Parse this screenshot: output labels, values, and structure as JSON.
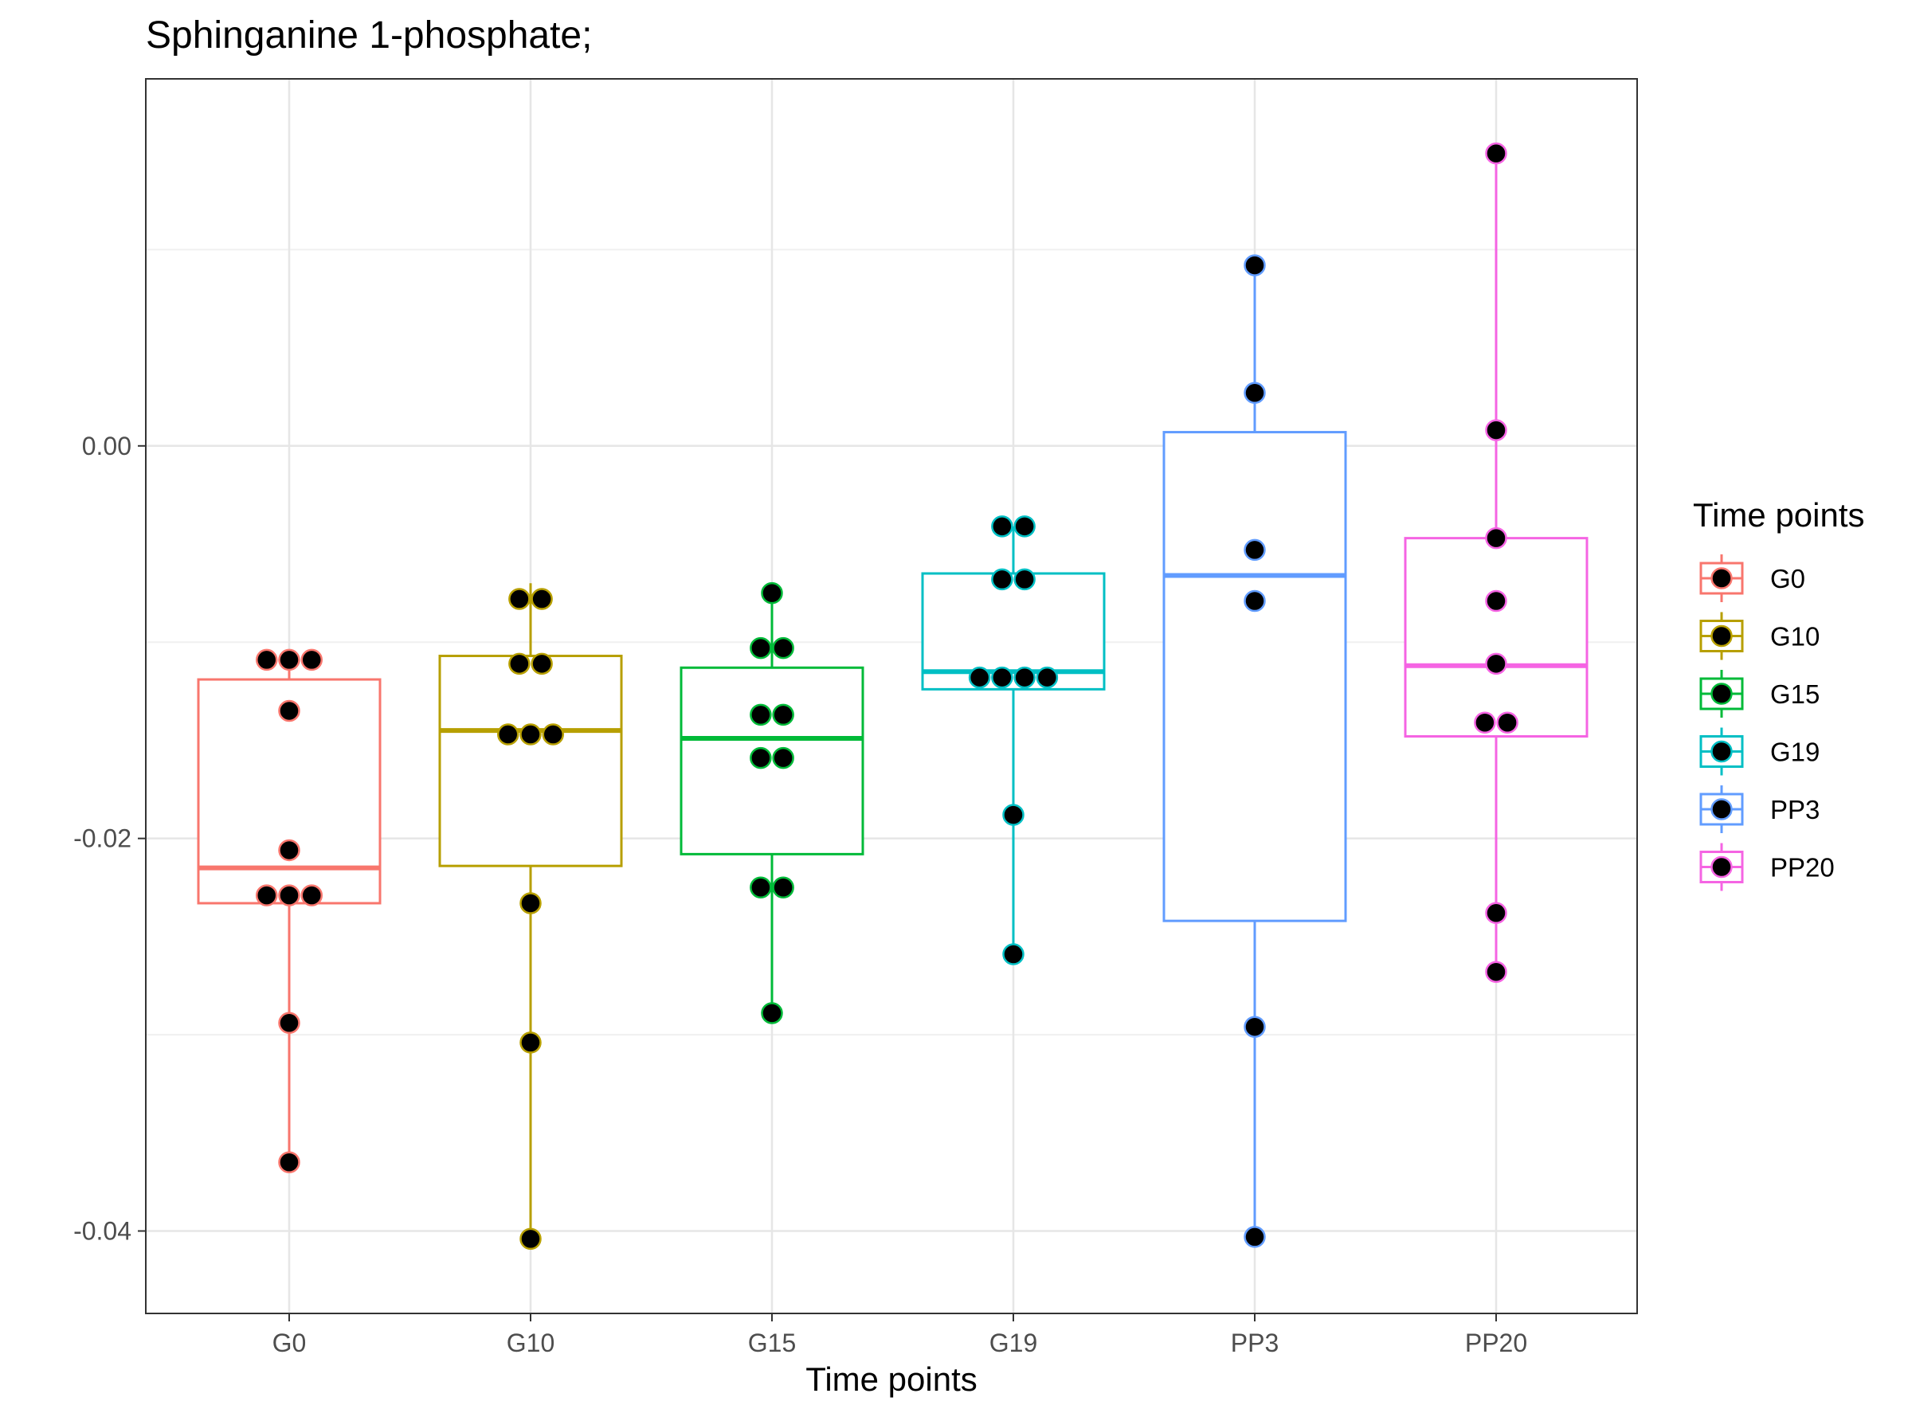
{
  "chart_data": {
    "type": "box",
    "title": "Sphinganine 1-phosphate;",
    "xlabel": "Time points",
    "ylabel": "",
    "categories": [
      "G0",
      "G10",
      "G15",
      "G19",
      "PP3",
      "PP20"
    ],
    "ylim": [
      -0.0442,
      0.0187
    ],
    "yticks": [
      -0.04,
      -0.02,
      0.0
    ],
    "ytick_labels": [
      "-0.04",
      "-0.02",
      "0.00"
    ],
    "grid": true,
    "legend": {
      "title": "Time points",
      "position": "right",
      "entries": [
        "G0",
        "G10",
        "G15",
        "G19",
        "PP3",
        "PP20"
      ]
    },
    "colors": {
      "G0": "#F8766D",
      "G10": "#B79F00",
      "G15": "#00BA38",
      "G19": "#00BFC4",
      "PP3": "#619CFF",
      "PP20": "#F564E3"
    },
    "boxes": [
      {
        "name": "G0",
        "min": -0.0365,
        "q1": -0.0233,
        "median": -0.0215,
        "q3": -0.0119,
        "max": -0.0109
      },
      {
        "name": "G10",
        "min": -0.0404,
        "q1": -0.0214,
        "median": -0.0145,
        "q3": -0.0107,
        "max": -0.007
      },
      {
        "name": "G15",
        "min": -0.0289,
        "q1": -0.0208,
        "median": -0.0149,
        "q3": -0.0113,
        "max": -0.0075
      },
      {
        "name": "G19",
        "min": -0.0259,
        "q1": -0.0124,
        "median": -0.0115,
        "q3": -0.0065,
        "max": -0.0041
      },
      {
        "name": "PP3",
        "min": -0.0403,
        "q1": -0.0242,
        "median": -0.0066,
        "q3": 0.0007,
        "max": 0.0092
      },
      {
        "name": "PP20",
        "min": -0.0268,
        "q1": -0.0148,
        "median": -0.0112,
        "q3": -0.0047,
        "max": 0.0149
      }
    ],
    "points": [
      {
        "group": "G0",
        "jitter": -0.18,
        "y": -0.0109
      },
      {
        "group": "G0",
        "jitter": 0.0,
        "y": -0.0109
      },
      {
        "group": "G0",
        "jitter": 0.18,
        "y": -0.0109
      },
      {
        "group": "G0",
        "jitter": 0.0,
        "y": -0.0135
      },
      {
        "group": "G0",
        "jitter": 0.0,
        "y": -0.0206
      },
      {
        "group": "G0",
        "jitter": -0.18,
        "y": -0.0229
      },
      {
        "group": "G0",
        "jitter": 0.0,
        "y": -0.0229
      },
      {
        "group": "G0",
        "jitter": 0.18,
        "y": -0.0229
      },
      {
        "group": "G0",
        "jitter": 0.0,
        "y": -0.0294
      },
      {
        "group": "G0",
        "jitter": 0.0,
        "y": -0.0365
      },
      {
        "group": "G10",
        "jitter": -0.09,
        "y": -0.0078
      },
      {
        "group": "G10",
        "jitter": 0.09,
        "y": -0.0078
      },
      {
        "group": "G10",
        "jitter": -0.09,
        "y": -0.0111
      },
      {
        "group": "G10",
        "jitter": 0.09,
        "y": -0.0111
      },
      {
        "group": "G10",
        "jitter": -0.18,
        "y": -0.0147
      },
      {
        "group": "G10",
        "jitter": 0.0,
        "y": -0.0147
      },
      {
        "group": "G10",
        "jitter": 0.18,
        "y": -0.0147
      },
      {
        "group": "G10",
        "jitter": 0.0,
        "y": -0.0233
      },
      {
        "group": "G10",
        "jitter": 0.0,
        "y": -0.0304
      },
      {
        "group": "G10",
        "jitter": 0.0,
        "y": -0.0404
      },
      {
        "group": "G15",
        "jitter": 0.0,
        "y": -0.0075
      },
      {
        "group": "G15",
        "jitter": -0.09,
        "y": -0.0103
      },
      {
        "group": "G15",
        "jitter": 0.09,
        "y": -0.0103
      },
      {
        "group": "G15",
        "jitter": -0.09,
        "y": -0.0137
      },
      {
        "group": "G15",
        "jitter": 0.09,
        "y": -0.0137
      },
      {
        "group": "G15",
        "jitter": -0.09,
        "y": -0.0159
      },
      {
        "group": "G15",
        "jitter": 0.09,
        "y": -0.0159
      },
      {
        "group": "G15",
        "jitter": -0.09,
        "y": -0.0225
      },
      {
        "group": "G15",
        "jitter": 0.09,
        "y": -0.0225
      },
      {
        "group": "G15",
        "jitter": 0.0,
        "y": -0.0289
      },
      {
        "group": "G19",
        "jitter": -0.09,
        "y": -0.0041
      },
      {
        "group": "G19",
        "jitter": 0.09,
        "y": -0.0041
      },
      {
        "group": "G19",
        "jitter": -0.09,
        "y": -0.0068
      },
      {
        "group": "G19",
        "jitter": 0.09,
        "y": -0.0068
      },
      {
        "group": "G19",
        "jitter": -0.27,
        "y": -0.0118
      },
      {
        "group": "G19",
        "jitter": -0.09,
        "y": -0.0118
      },
      {
        "group": "G19",
        "jitter": 0.09,
        "y": -0.0118
      },
      {
        "group": "G19",
        "jitter": 0.27,
        "y": -0.0118
      },
      {
        "group": "G19",
        "jitter": 0.0,
        "y": -0.0188
      },
      {
        "group": "G19",
        "jitter": 0.0,
        "y": -0.0259
      },
      {
        "group": "PP3",
        "jitter": 0.0,
        "y": 0.0092
      },
      {
        "group": "PP3",
        "jitter": 0.0,
        "y": 0.0027
      },
      {
        "group": "PP3",
        "jitter": 0.0,
        "y": -0.0053
      },
      {
        "group": "PP3",
        "jitter": 0.0,
        "y": -0.0079
      },
      {
        "group": "PP3",
        "jitter": 0.0,
        "y": -0.0296
      },
      {
        "group": "PP3",
        "jitter": 0.0,
        "y": -0.0403
      },
      {
        "group": "PP20",
        "jitter": 0.0,
        "y": 0.0149
      },
      {
        "group": "PP20",
        "jitter": 0.0,
        "y": 0.0008
      },
      {
        "group": "PP20",
        "jitter": 0.0,
        "y": -0.0047
      },
      {
        "group": "PP20",
        "jitter": 0.0,
        "y": -0.0079
      },
      {
        "group": "PP20",
        "jitter": 0.0,
        "y": -0.0111
      },
      {
        "group": "PP20",
        "jitter": -0.09,
        "y": -0.0141
      },
      {
        "group": "PP20",
        "jitter": 0.09,
        "y": -0.0141
      },
      {
        "group": "PP20",
        "jitter": 0.0,
        "y": -0.0238
      },
      {
        "group": "PP20",
        "jitter": 0.0,
        "y": -0.0268
      }
    ]
  }
}
